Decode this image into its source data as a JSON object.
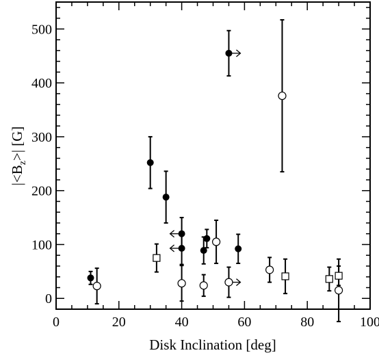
{
  "chart_data": {
    "type": "scatter",
    "xlabel": "Disk Inclination [deg]",
    "ylabel": {
      "prefix": "|<B",
      "subscript": "z",
      "suffix": ">| [G]"
    },
    "xlim": [
      0,
      100
    ],
    "ylim": [
      -20,
      550
    ],
    "xticks": [
      0,
      20,
      40,
      60,
      80,
      100
    ],
    "xticks_minor": [
      5,
      10,
      15,
      25,
      30,
      35,
      45,
      50,
      55,
      65,
      70,
      75,
      85,
      90,
      95
    ],
    "yticks": [
      0,
      100,
      200,
      300,
      400,
      500
    ],
    "yticks_minor": [
      20,
      40,
      60,
      80,
      120,
      140,
      160,
      180,
      220,
      240,
      260,
      280,
      320,
      340,
      360,
      380,
      420,
      440,
      460,
      480,
      520,
      540
    ],
    "grid": false,
    "legend": "none",
    "series": [
      {
        "marker": "filled-circle",
        "points": [
          {
            "x": 11,
            "y": 38,
            "err": 12
          },
          {
            "x": 30,
            "y": 252,
            "err": 48
          },
          {
            "x": 35,
            "y": 188,
            "err": 48
          },
          {
            "x": 40,
            "y": 120,
            "err": 30,
            "arrow": "left"
          },
          {
            "x": 40,
            "y": 93,
            "err": 30,
            "arrow": "left"
          },
          {
            "x": 47,
            "y": 89,
            "err": 25
          },
          {
            "x": 48,
            "y": 111,
            "err": 17
          },
          {
            "x": 55,
            "y": 455,
            "err": 42,
            "arrow": "right"
          },
          {
            "x": 58,
            "y": 92,
            "err": 27
          }
        ]
      },
      {
        "marker": "open-circle",
        "points": [
          {
            "x": 13,
            "y": 23,
            "err": 33
          },
          {
            "x": 40,
            "y": 28,
            "err": 33
          },
          {
            "x": 47,
            "y": 24,
            "err": 20
          },
          {
            "x": 51,
            "y": 105,
            "err": 40
          },
          {
            "x": 55,
            "y": 30,
            "err": 28,
            "arrow": "right"
          },
          {
            "x": 68,
            "y": 53,
            "err": 23
          },
          {
            "x": 72,
            "y": 376,
            "err": 141
          },
          {
            "x": 90,
            "y": 15,
            "err": 58
          }
        ]
      },
      {
        "marker": "open-square",
        "points": [
          {
            "x": 32,
            "y": 75,
            "err": 26
          },
          {
            "x": 73,
            "y": 41,
            "err": 32
          },
          {
            "x": 87,
            "y": 36,
            "err": 22
          },
          {
            "x": 90,
            "y": 42,
            "err": 18
          }
        ]
      }
    ]
  }
}
